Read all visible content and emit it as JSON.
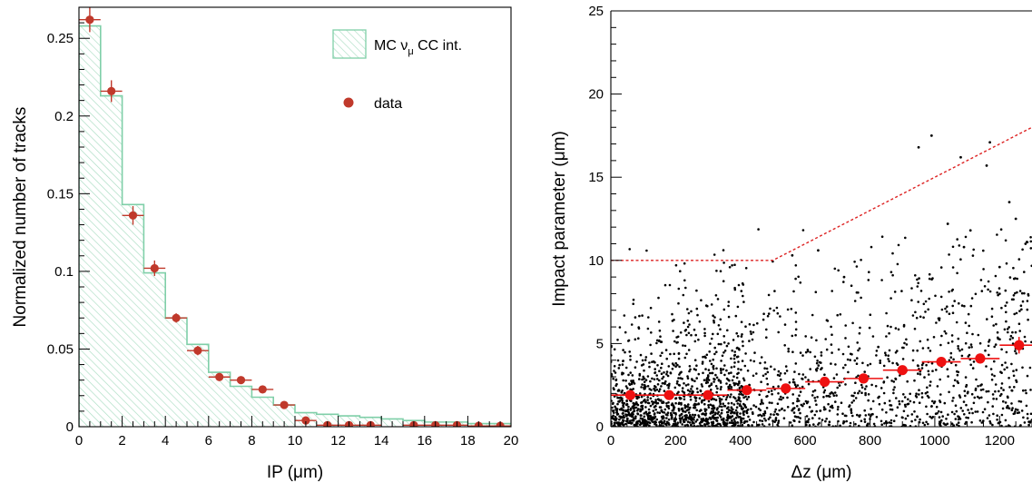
{
  "colors": {
    "mc_line": "#7fcfa8",
    "mc_hatch": "#a9dcc2",
    "data_marker": "#c0392b",
    "profile_marker": "#ee1111",
    "cut_line": "#dd2222",
    "scatter_point": "#000000"
  },
  "chart_data": [
    {
      "type": "bar",
      "panel": "left",
      "xlabel": "IP (μm)",
      "ylabel": "Normalized number of tracks",
      "xlim": [
        0,
        20
      ],
      "ylim": [
        0,
        0.27
      ],
      "x_ticks": [
        0,
        2,
        4,
        6,
        8,
        10,
        12,
        14,
        16,
        18,
        20
      ],
      "x_tick_labels": [
        "0",
        "2",
        "4",
        "6",
        "8",
        "10",
        "12",
        "14",
        "16",
        "18",
        "20"
      ],
      "y_ticks": [
        0,
        0.05,
        0.1,
        0.15,
        0.2,
        0.25
      ],
      "y_tick_labels": [
        "0",
        "0.05",
        "0.1",
        "0.15",
        "0.2",
        "0.25"
      ],
      "legend_position": "top-right",
      "bin_edges": [
        0,
        1,
        2,
        3,
        4,
        5,
        6,
        7,
        8,
        9,
        10,
        11,
        12,
        13,
        14,
        15,
        16,
        17,
        18,
        19,
        20
      ],
      "series": [
        {
          "name": "MC νμ CC int.",
          "legend_main": "MC ν",
          "legend_sub": "μ",
          "legend_tail": " CC int.",
          "style": "hatched-step",
          "values": [
            0.258,
            0.213,
            0.143,
            0.099,
            0.07,
            0.053,
            0.035,
            0.026,
            0.019,
            0.014,
            0.009,
            0.008,
            0.007,
            0.006,
            0.005,
            0.004,
            0.003,
            0.003,
            0.002,
            0.002
          ]
        },
        {
          "name": "data",
          "style": "points-with-errors",
          "x": [
            0.5,
            1.5,
            2.5,
            3.5,
            4.5,
            5.5,
            6.5,
            7.5,
            8.5,
            9.5,
            10.5,
            11.5,
            12.5,
            13.5,
            15.5,
            16.5,
            17.5,
            18.5,
            19.5
          ],
          "values": [
            0.262,
            0.216,
            0.136,
            0.102,
            0.07,
            0.049,
            0.032,
            0.03,
            0.024,
            0.014,
            0.004,
            0.001,
            0.001,
            0.001,
            0.001,
            0.001,
            0.001,
            0.0005,
            0.0005
          ],
          "y_errors": [
            0.008,
            0.007,
            0.006,
            0.005,
            0.003,
            0.003,
            0.002,
            0.002,
            0.002,
            0.002,
            0.001,
            0.001,
            0.001,
            0.001,
            0.001,
            0.001,
            0.001,
            0.001,
            0.001
          ]
        }
      ]
    },
    {
      "type": "scatter",
      "panel": "right",
      "xlabel": "Δz (μm)",
      "ylabel": "Impact parameter (μm)",
      "xlim": [
        0,
        1300
      ],
      "ylim": [
        0,
        25
      ],
      "x_ticks": [
        0,
        200,
        400,
        600,
        800,
        1000,
        1200
      ],
      "x_tick_labels": [
        "0",
        "200",
        "400",
        "600",
        "800",
        "1000",
        "1200"
      ],
      "y_ticks": [
        0,
        5,
        10,
        15,
        20,
        25
      ],
      "y_tick_labels": [
        "0",
        "5",
        "10",
        "15",
        "20",
        "25"
      ],
      "cut_line": {
        "x": [
          0,
          500,
          1300
        ],
        "y": [
          10,
          10,
          18
        ]
      },
      "profile": {
        "x": [
          60,
          180,
          300,
          420,
          540,
          660,
          780,
          900,
          1020,
          1140,
          1260
        ],
        "values": [
          1.9,
          1.9,
          1.9,
          2.2,
          2.3,
          2.7,
          2.9,
          3.4,
          3.9,
          4.1,
          4.9
        ],
        "x_half_width": 60,
        "y_errors": [
          0.2,
          0.15,
          0.15,
          0.15,
          0.15,
          0.15,
          0.2,
          0.2,
          0.25,
          0.3,
          0.5
        ]
      },
      "outlier_points": {
        "x": [
          720,
          950,
          990,
          1080,
          1160,
          1170,
          1230,
          1250,
          1090,
          1040,
          640,
          560,
          1110,
          1280,
          1200
        ],
        "y": [
          9.0,
          16.8,
          17.5,
          16.2,
          15.7,
          17.1,
          13.5,
          12.5,
          10.8,
          12.2,
          10.6,
          10.3,
          11.8,
          11.0,
          9.6
        ]
      }
    }
  ]
}
